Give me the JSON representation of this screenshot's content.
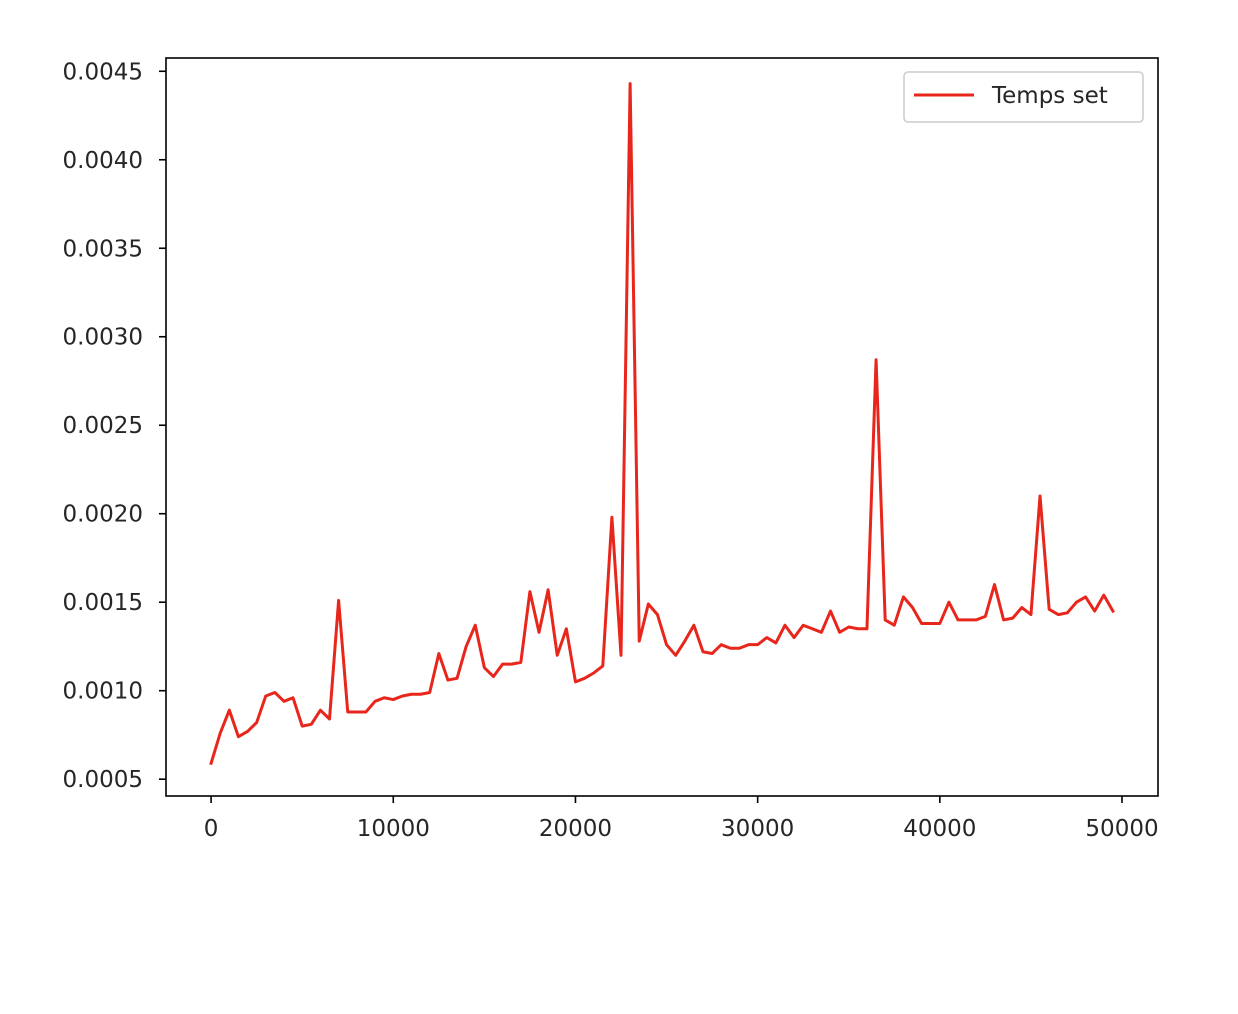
{
  "chart_data": {
    "type": "line",
    "title": "",
    "xlabel": "",
    "ylabel": "",
    "xlim": [
      -2475,
      51975
    ],
    "ylim": [
      0.000405,
      0.004575
    ],
    "x_ticks": [
      0,
      10000,
      20000,
      30000,
      40000,
      50000
    ],
    "y_ticks": [
      0.0005,
      0.001,
      0.0015,
      0.002,
      0.0025,
      0.003,
      0.0035,
      0.004,
      0.0045
    ],
    "x_tick_labels": [
      "0",
      "10000",
      "20000",
      "30000",
      "40000",
      "50000"
    ],
    "y_tick_labels": [
      "0.0005",
      "0.0010",
      "0.0015",
      "0.0020",
      "0.0025",
      "0.0030",
      "0.0035",
      "0.0040",
      "0.0045"
    ],
    "grid": false,
    "legend_position": "top-right",
    "series": [
      {
        "name": "Temps set",
        "color": "#e8261c",
        "x": [
          0,
          500,
          1000,
          1500,
          2000,
          2500,
          3000,
          3500,
          4000,
          4500,
          5000,
          5500,
          6000,
          6500,
          7000,
          7500,
          8000,
          8500,
          9000,
          9500,
          10000,
          10500,
          11000,
          11500,
          12000,
          12500,
          13000,
          13500,
          14000,
          14500,
          15000,
          15500,
          16000,
          16500,
          17000,
          17500,
          18000,
          18500,
          19000,
          19500,
          20000,
          20500,
          21000,
          21500,
          22000,
          22500,
          23000,
          23500,
          24000,
          24500,
          25000,
          25500,
          26000,
          26500,
          27000,
          27500,
          28000,
          28500,
          29000,
          29500,
          30000,
          30500,
          31000,
          31500,
          32000,
          32500,
          33000,
          33500,
          34000,
          34500,
          35000,
          35500,
          36000,
          36500,
          37000,
          37500,
          38000,
          38500,
          39000,
          39500,
          40000,
          40500,
          41000,
          41500,
          42000,
          42500,
          43000,
          43500,
          44000,
          44500,
          45000,
          45500,
          46000,
          46500,
          47000,
          47500,
          48000,
          48500,
          49000,
          49500
        ],
        "values": [
          0.00059,
          0.00076,
          0.00089,
          0.00074,
          0.00077,
          0.00082,
          0.00097,
          0.00099,
          0.00094,
          0.00096,
          0.0008,
          0.00081,
          0.00089,
          0.00084,
          0.00151,
          0.00088,
          0.00088,
          0.00088,
          0.00094,
          0.00096,
          0.00095,
          0.00097,
          0.00098,
          0.00098,
          0.00099,
          0.00121,
          0.00106,
          0.00107,
          0.00125,
          0.00137,
          0.00113,
          0.00108,
          0.00115,
          0.00115,
          0.00116,
          0.00156,
          0.00133,
          0.00157,
          0.0012,
          0.00135,
          0.00105,
          0.00107,
          0.0011,
          0.00114,
          0.00198,
          0.0012,
          0.00443,
          0.00128,
          0.00149,
          0.00143,
          0.00126,
          0.0012,
          0.00128,
          0.00137,
          0.00122,
          0.00121,
          0.00126,
          0.00124,
          0.00124,
          0.00126,
          0.00126,
          0.0013,
          0.00127,
          0.00137,
          0.0013,
          0.00137,
          0.00135,
          0.00133,
          0.00145,
          0.00133,
          0.00136,
          0.00135,
          0.00135,
          0.00287,
          0.0014,
          0.00137,
          0.00153,
          0.00147,
          0.00138,
          0.00138,
          0.00138,
          0.0015,
          0.0014,
          0.0014,
          0.0014,
          0.00142,
          0.0016,
          0.0014,
          0.00141,
          0.00147,
          0.00143,
          0.0021,
          0.00146,
          0.00143,
          0.00144,
          0.0015,
          0.00153,
          0.00145,
          0.00154,
          0.00145
        ]
      }
    ]
  }
}
